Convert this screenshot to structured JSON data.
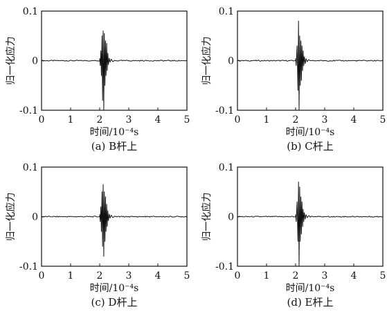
{
  "chart_data": [
    {
      "type": "line",
      "caption": "(a) B杆上",
      "xlabel": "时间/10⁻⁴s",
      "ylabel": "归一化应力",
      "xlim": [
        0,
        5
      ],
      "ylim": [
        -0.1,
        0.1
      ],
      "xticks": [
        "0",
        "1",
        "2",
        "3",
        "4",
        "5"
      ],
      "yticks": [
        "0.1",
        "0",
        "-0.1"
      ],
      "grid": false,
      "series": [
        {
          "x": [
            0,
            2.0,
            2.02,
            2.04,
            2.06,
            2.08,
            2.1,
            2.12,
            2.14,
            2.16,
            2.18,
            2.2,
            2.22,
            2.24,
            2.26,
            2.28,
            2.3,
            2.33,
            2.36,
            2.4,
            2.45,
            2.5,
            5
          ],
          "y": [
            0,
            0.004,
            -0.01,
            0.02,
            -0.03,
            0.05,
            -0.08,
            0.06,
            -0.1,
            0.055,
            -0.05,
            0.04,
            -0.03,
            0.035,
            -0.02,
            0.015,
            -0.008,
            0.005,
            -0.003,
            0.003,
            -0.002,
            0,
            0
          ]
        }
      ]
    },
    {
      "type": "line",
      "caption": "(b) C杆上",
      "xlabel": "时间/10⁻⁴s",
      "ylabel": "归一化应力",
      "xlim": [
        0,
        5
      ],
      "ylim": [
        -0.1,
        0.1
      ],
      "xticks": [
        "0",
        "1",
        "2",
        "3",
        "4",
        "5"
      ],
      "yticks": [
        "0.1",
        "0",
        "-0.1"
      ],
      "grid": false,
      "series": [
        {
          "x": [
            0,
            2.0,
            2.02,
            2.05,
            2.08,
            2.1,
            2.12,
            2.14,
            2.16,
            2.18,
            2.2,
            2.22,
            2.24,
            2.26,
            2.28,
            2.3,
            2.33,
            2.36,
            2.4,
            2.45,
            2.5,
            5
          ],
          "y": [
            0,
            0.004,
            -0.01,
            0.03,
            -0.06,
            0.08,
            -0.1,
            0.05,
            -0.05,
            0.04,
            -0.04,
            0.03,
            -0.02,
            0.02,
            -0.01,
            0.008,
            -0.006,
            0.004,
            -0.002,
            0.002,
            0,
            0
          ]
        }
      ]
    },
    {
      "type": "line",
      "caption": "(c) D杆上",
      "xlabel": "时间/10⁻⁴s",
      "ylabel": "归一化应力",
      "xlim": [
        0,
        5
      ],
      "ylim": [
        -0.1,
        0.1
      ],
      "xticks": [
        "0",
        "1",
        "2",
        "3",
        "4",
        "5"
      ],
      "yticks": [
        "0.1",
        "0",
        "-0.1"
      ],
      "grid": false,
      "series": [
        {
          "x": [
            0,
            2.0,
            2.02,
            2.04,
            2.06,
            2.08,
            2.1,
            2.12,
            2.14,
            2.16,
            2.18,
            2.2,
            2.22,
            2.24,
            2.26,
            2.28,
            2.3,
            2.33,
            2.36,
            2.4,
            2.45,
            2.5,
            5
          ],
          "y": [
            0,
            0.004,
            -0.01,
            0.02,
            -0.03,
            0.05,
            -0.06,
            0.065,
            -0.08,
            0.05,
            -0.05,
            0.04,
            -0.03,
            0.025,
            -0.02,
            0.012,
            -0.008,
            0.005,
            -0.003,
            0.003,
            -0.002,
            0,
            0
          ]
        }
      ]
    },
    {
      "type": "line",
      "caption": "(d) E杆上",
      "xlabel": "时间/10⁻⁴s",
      "ylabel": "归一化应力",
      "xlim": [
        0,
        5
      ],
      "ylim": [
        -0.1,
        0.1
      ],
      "xticks": [
        "0",
        "1",
        "2",
        "3",
        "4",
        "5"
      ],
      "yticks": [
        "0.1",
        "0",
        "-0.1"
      ],
      "grid": false,
      "series": [
        {
          "x": [
            0,
            2.0,
            2.02,
            2.05,
            2.08,
            2.1,
            2.12,
            2.14,
            2.16,
            2.18,
            2.2,
            2.22,
            2.24,
            2.26,
            2.28,
            2.3,
            2.33,
            2.36,
            2.4,
            2.45,
            2.5,
            5
          ],
          "y": [
            0,
            0.004,
            -0.01,
            0.03,
            -0.05,
            0.07,
            -0.1,
            0.06,
            -0.05,
            0.04,
            -0.035,
            0.03,
            -0.02,
            0.015,
            -0.01,
            0.008,
            -0.005,
            0.004,
            -0.002,
            0.002,
            0,
            0
          ]
        }
      ]
    }
  ]
}
